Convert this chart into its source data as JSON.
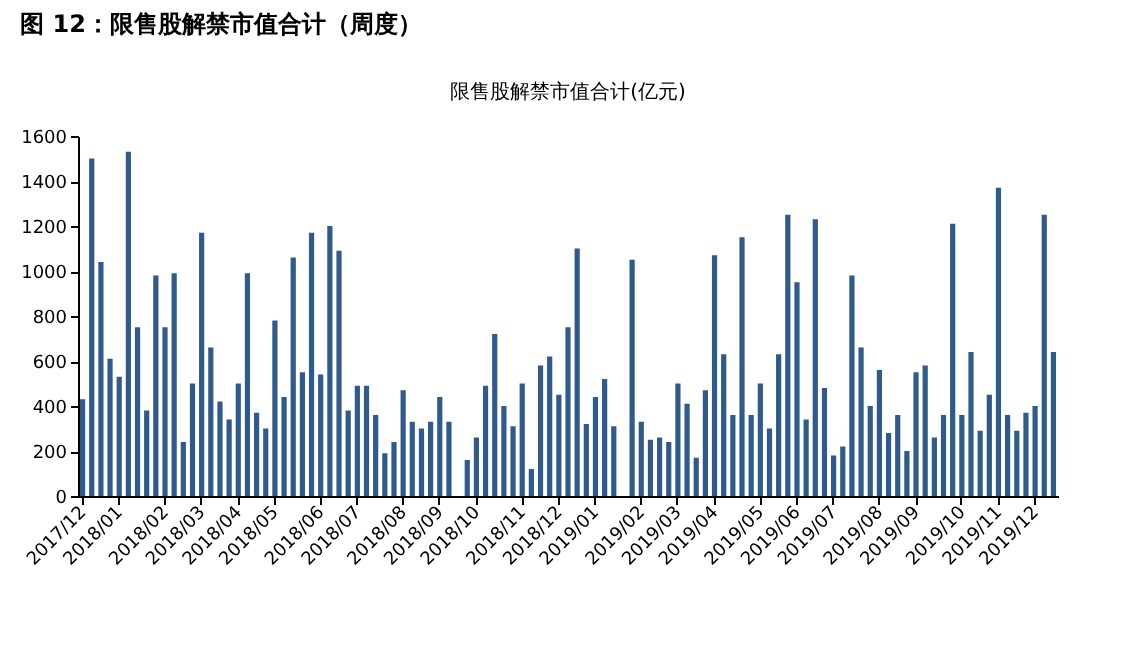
{
  "chart_data": {
    "type": "bar",
    "title": "图 12：限售股解禁市值合计（周度）",
    "subtitle": "限售股解禁市值合计(亿元)",
    "categories": [
      "2017/12",
      null,
      null,
      null,
      "2018/01",
      null,
      null,
      null,
      null,
      "2018/02",
      null,
      null,
      null,
      "2018/03",
      null,
      null,
      null,
      "2018/04",
      null,
      null,
      null,
      "2018/05",
      null,
      null,
      null,
      null,
      "2018/06",
      null,
      null,
      null,
      "2018/07",
      null,
      null,
      null,
      null,
      "2018/08",
      null,
      null,
      null,
      "2018/09",
      null,
      null,
      null,
      "2018/10",
      null,
      null,
      null,
      null,
      "2018/11",
      null,
      null,
      null,
      "2018/12",
      null,
      null,
      null,
      "2019/01",
      null,
      null,
      null,
      null,
      "2019/02",
      null,
      null,
      null,
      "2019/03",
      null,
      null,
      null,
      "2019/04",
      null,
      null,
      null,
      null,
      "2019/05",
      null,
      null,
      null,
      "2019/06",
      null,
      null,
      null,
      "2019/07",
      null,
      null,
      null,
      null,
      "2019/08",
      null,
      null,
      null,
      "2019/09",
      null,
      null,
      null,
      null,
      "2019/10",
      null,
      null,
      null,
      "2019/11",
      null,
      null,
      null,
      "2019/12",
      null,
      null
    ],
    "values": [
      430,
      1500,
      1040,
      610,
      530,
      1530,
      750,
      380,
      980,
      750,
      990,
      240,
      500,
      1170,
      660,
      420,
      340,
      500,
      990,
      370,
      300,
      780,
      440,
      1060,
      550,
      1170,
      540,
      1200,
      1090,
      380,
      490,
      490,
      360,
      190,
      240,
      470,
      330,
      300,
      330,
      440,
      330,
      null,
      160,
      260,
      490,
      720,
      400,
      310,
      500,
      120,
      580,
      620,
      450,
      750,
      1100,
      320,
      440,
      520,
      310,
      null,
      1050,
      330,
      250,
      260,
      240,
      500,
      410,
      170,
      470,
      1070,
      630,
      360,
      1150,
      360,
      500,
      300,
      630,
      1250,
      950,
      340,
      1230,
      480,
      180,
      220,
      980,
      660,
      400,
      560,
      280,
      360,
      200,
      550,
      580,
      260,
      360,
      1210,
      360,
      640,
      290,
      450,
      1370,
      360,
      290,
      370,
      400,
      1250,
      640
    ],
    "color": "#2f5a8c",
    "ylim": [
      0,
      1600
    ],
    "yticks": [
      0,
      200,
      400,
      600,
      800,
      1000,
      1200,
      1400,
      1600
    ],
    "grid": false
  }
}
